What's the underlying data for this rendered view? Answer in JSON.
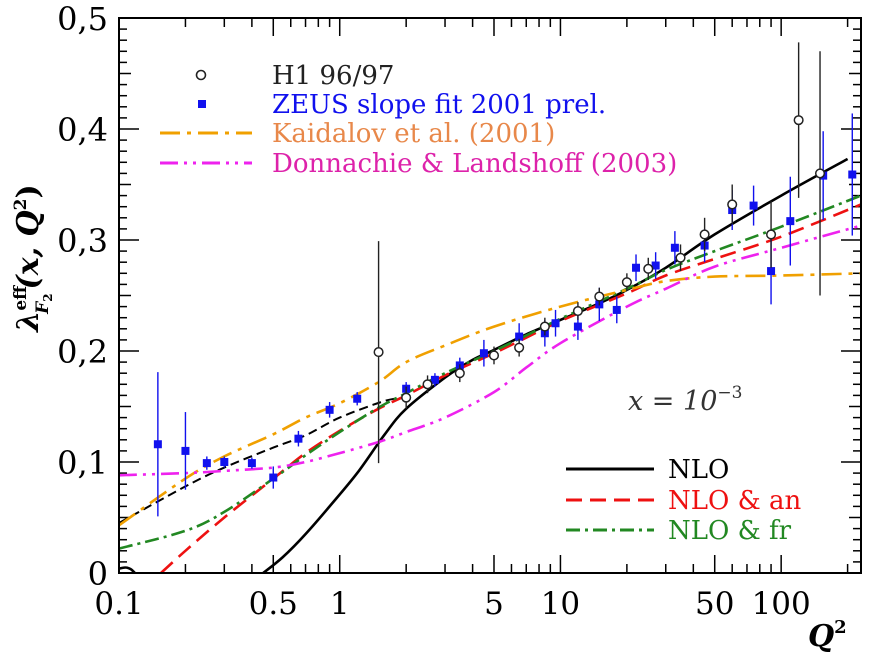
{
  "chart_data": {
    "type": "line",
    "title": "",
    "xlabel": "Q²",
    "ylabel": "λ_F2^eff(x, Q²)",
    "ylabel_parts": {
      "lambda": "λ",
      "sup": "eff",
      "sub": "F",
      "subsub": "2",
      "args": "(x, Q",
      "argsup": "2",
      "close": ")"
    },
    "xlabel_parts": {
      "q": "Q",
      "sup": "2"
    },
    "annotation": {
      "text": "x = 10",
      "exp": "−3"
    },
    "xscale": "log",
    "xlim": [
      0.1,
      230
    ],
    "ylim": [
      0,
      0.5
    ],
    "x_ticks": [
      {
        "value": 0.1,
        "label": "0.1"
      },
      {
        "value": 0.5,
        "label": "0.5"
      },
      {
        "value": 1,
        "label": "1"
      },
      {
        "value": 5,
        "label": "5"
      },
      {
        "value": 10,
        "label": "10"
      },
      {
        "value": 50,
        "label": "50"
      },
      {
        "value": 100,
        "label": "100"
      }
    ],
    "y_ticks": [
      {
        "value": 0,
        "label": "0"
      },
      {
        "value": 0.1,
        "label": "0,1"
      },
      {
        "value": 0.2,
        "label": "0,2"
      },
      {
        "value": 0.3,
        "label": "0,3"
      },
      {
        "value": 0.4,
        "label": "0,4"
      },
      {
        "value": 0.5,
        "label": "0,5"
      }
    ],
    "legend_top": [
      {
        "label": "H1 96/97",
        "color": "#222222",
        "marker": "open-circle"
      },
      {
        "label": "ZEUS slope fit 2001 prel.",
        "color": "#1111ee",
        "marker": "filled-square"
      },
      {
        "label": "Kaidalov et al. (2001)",
        "color": "#f0a000",
        "text_color": "#e8884a",
        "dash": "20,7,4,7"
      },
      {
        "label": "Donnachie & Landshoff (2003)",
        "color": "#ee22ee",
        "text_color": "#dd22aa",
        "dash": "18,6,3,6,3,6"
      }
    ],
    "legend_bottom": [
      {
        "label": "NLO",
        "color": "#000000",
        "dash": ""
      },
      {
        "label": "NLO & an",
        "color": "#ee1111",
        "dash": "16,8"
      },
      {
        "label": "NLO & fr",
        "color": "#228822",
        "dash": "14,5,3,5"
      }
    ],
    "series": [
      {
        "name": "NLO",
        "color": "#000000",
        "dash": "",
        "width": 2.6,
        "points": [
          [
            0.45,
            0
          ],
          [
            0.55,
            0.014
          ],
          [
            0.7,
            0.035
          ],
          [
            0.9,
            0.06
          ],
          [
            1.2,
            0.09
          ],
          [
            1.6,
            0.125
          ],
          [
            2,
            0.148
          ],
          [
            3,
            0.176
          ],
          [
            4,
            0.192
          ],
          [
            5,
            0.201
          ],
          [
            7,
            0.215
          ],
          [
            10,
            0.228
          ],
          [
            15,
            0.243
          ],
          [
            20,
            0.255
          ],
          [
            30,
            0.275
          ],
          [
            50,
            0.305
          ],
          [
            100,
            0.34
          ],
          [
            200,
            0.373
          ]
        ]
      },
      {
        "name": "NLO dashed extension",
        "color": "#000000",
        "dash": "9,5",
        "width": 2.0,
        "points": [
          [
            0.1,
            0.045
          ],
          [
            0.2,
            0.078
          ],
          [
            0.3,
            0.095
          ],
          [
            0.5,
            0.113
          ],
          [
            0.7,
            0.124
          ],
          [
            1,
            0.14
          ],
          [
            1.6,
            0.155
          ],
          [
            2,
            0.158
          ]
        ]
      },
      {
        "name": "NLO short segment",
        "color": "#000000",
        "dash": "",
        "width": 2.6,
        "points": [
          [
            0.1,
            0.004
          ],
          [
            0.107,
            0.005
          ],
          [
            0.113,
            0.0035
          ],
          [
            0.118,
            0
          ]
        ]
      },
      {
        "name": "NLO & an",
        "color": "#ee1111",
        "dash": "16,8",
        "width": 2.6,
        "points": [
          [
            0.155,
            0
          ],
          [
            0.2,
            0.02
          ],
          [
            0.3,
            0.05
          ],
          [
            0.5,
            0.085
          ],
          [
            0.7,
            0.108
          ],
          [
            1,
            0.128
          ],
          [
            1.5,
            0.148
          ],
          [
            2,
            0.16
          ],
          [
            3,
            0.178
          ],
          [
            5,
            0.198
          ],
          [
            7,
            0.212
          ],
          [
            10,
            0.227
          ],
          [
            20,
            0.252
          ],
          [
            30,
            0.268
          ],
          [
            50,
            0.283
          ],
          [
            100,
            0.303
          ],
          [
            230,
            0.332
          ]
        ]
      },
      {
        "name": "NLO & fr",
        "color": "#228822",
        "dash": "14,5,3,5",
        "width": 2.6,
        "points": [
          [
            0.1,
            0.022
          ],
          [
            0.2,
            0.038
          ],
          [
            0.3,
            0.055
          ],
          [
            0.5,
            0.085
          ],
          [
            0.7,
            0.106
          ],
          [
            1,
            0.127
          ],
          [
            1.5,
            0.149
          ],
          [
            2,
            0.162
          ],
          [
            3,
            0.18
          ],
          [
            5,
            0.2
          ],
          [
            7,
            0.214
          ],
          [
            10,
            0.229
          ],
          [
            20,
            0.256
          ],
          [
            30,
            0.273
          ],
          [
            50,
            0.29
          ],
          [
            100,
            0.312
          ],
          [
            230,
            0.34
          ]
        ]
      },
      {
        "name": "Kaidalov et al. (2001)",
        "color": "#f0a000",
        "dash": "20,7,4,7",
        "width": 2.6,
        "points": [
          [
            0.1,
            0.043
          ],
          [
            0.2,
            0.085
          ],
          [
            0.3,
            0.105
          ],
          [
            0.5,
            0.125
          ],
          [
            0.7,
            0.14
          ],
          [
            1,
            0.153
          ],
          [
            1.5,
            0.172
          ],
          [
            2,
            0.19
          ],
          [
            3,
            0.205
          ],
          [
            5,
            0.222
          ],
          [
            10,
            0.24
          ],
          [
            20,
            0.255
          ],
          [
            30,
            0.263
          ],
          [
            50,
            0.267
          ],
          [
            100,
            0.268
          ],
          [
            230,
            0.27
          ]
        ]
      },
      {
        "name": "Donnachie & Landshoff (2003)",
        "color": "#ee22ee",
        "dash": "18,6,3,6,3,6",
        "width": 2.6,
        "points": [
          [
            0.1,
            0.088
          ],
          [
            0.2,
            0.09
          ],
          [
            0.3,
            0.092
          ],
          [
            0.5,
            0.095
          ],
          [
            0.7,
            0.1
          ],
          [
            1,
            0.108
          ],
          [
            1.5,
            0.118
          ],
          [
            2,
            0.127
          ],
          [
            3,
            0.14
          ],
          [
            5,
            0.163
          ],
          [
            7,
            0.185
          ],
          [
            10,
            0.207
          ],
          [
            20,
            0.24
          ],
          [
            30,
            0.256
          ],
          [
            50,
            0.276
          ],
          [
            100,
            0.293
          ],
          [
            230,
            0.313
          ]
        ]
      }
    ],
    "points_h1": {
      "name": "H1 96/97",
      "color": "#222222",
      "data": [
        [
          1.5,
          0.199,
          0.1
        ],
        [
          2,
          0.158,
          0.01
        ],
        [
          2.5,
          0.17,
          0.008
        ],
        [
          3.5,
          0.18,
          0.008
        ],
        [
          5,
          0.196,
          0.008
        ],
        [
          6.5,
          0.203,
          0.008
        ],
        [
          8.5,
          0.222,
          0.008
        ],
        [
          12,
          0.236,
          0.008
        ],
        [
          15,
          0.249,
          0.008
        ],
        [
          20,
          0.262,
          0.008
        ],
        [
          25,
          0.274,
          0.01
        ],
        [
          35,
          0.284,
          0.012
        ],
        [
          45,
          0.305,
          0.015
        ],
        [
          60,
          0.332,
          0.018
        ],
        [
          90,
          0.305,
          0.03
        ],
        [
          120,
          0.408,
          0.07
        ],
        [
          150,
          0.36,
          0.11
        ]
      ]
    },
    "points_zeus": {
      "name": "ZEUS slope fit 2001 prel.",
      "color": "#1111ee",
      "data": [
        [
          0.15,
          0.116,
          0.065
        ],
        [
          0.2,
          0.11,
          0.035
        ],
        [
          0.25,
          0.099,
          0.006
        ],
        [
          0.3,
          0.1,
          0.005
        ],
        [
          0.4,
          0.099,
          0.005
        ],
        [
          0.5,
          0.086,
          0.01
        ],
        [
          0.65,
          0.121,
          0.007
        ],
        [
          0.9,
          0.147,
          0.007
        ],
        [
          1.2,
          0.157,
          0.006
        ],
        [
          2,
          0.166,
          0.006
        ],
        [
          2.7,
          0.174,
          0.006
        ],
        [
          3.5,
          0.187,
          0.007
        ],
        [
          4.5,
          0.198,
          0.012
        ],
        [
          6.5,
          0.213,
          0.012
        ],
        [
          8.5,
          0.216,
          0.012
        ],
        [
          9.5,
          0.225,
          0.012
        ],
        [
          12,
          0.222,
          0.012
        ],
        [
          15,
          0.242,
          0.015
        ],
        [
          18,
          0.237,
          0.012
        ],
        [
          22,
          0.275,
          0.012
        ],
        [
          27,
          0.277,
          0.012
        ],
        [
          33,
          0.293,
          0.015
        ],
        [
          45,
          0.295,
          0.015
        ],
        [
          60,
          0.327,
          0.018
        ],
        [
          75,
          0.331,
          0.018
        ],
        [
          90,
          0.272,
          0.03
        ],
        [
          110,
          0.317,
          0.04
        ],
        [
          155,
          0.358,
          0.04
        ],
        [
          210,
          0.359,
          0.055
        ]
      ]
    }
  }
}
